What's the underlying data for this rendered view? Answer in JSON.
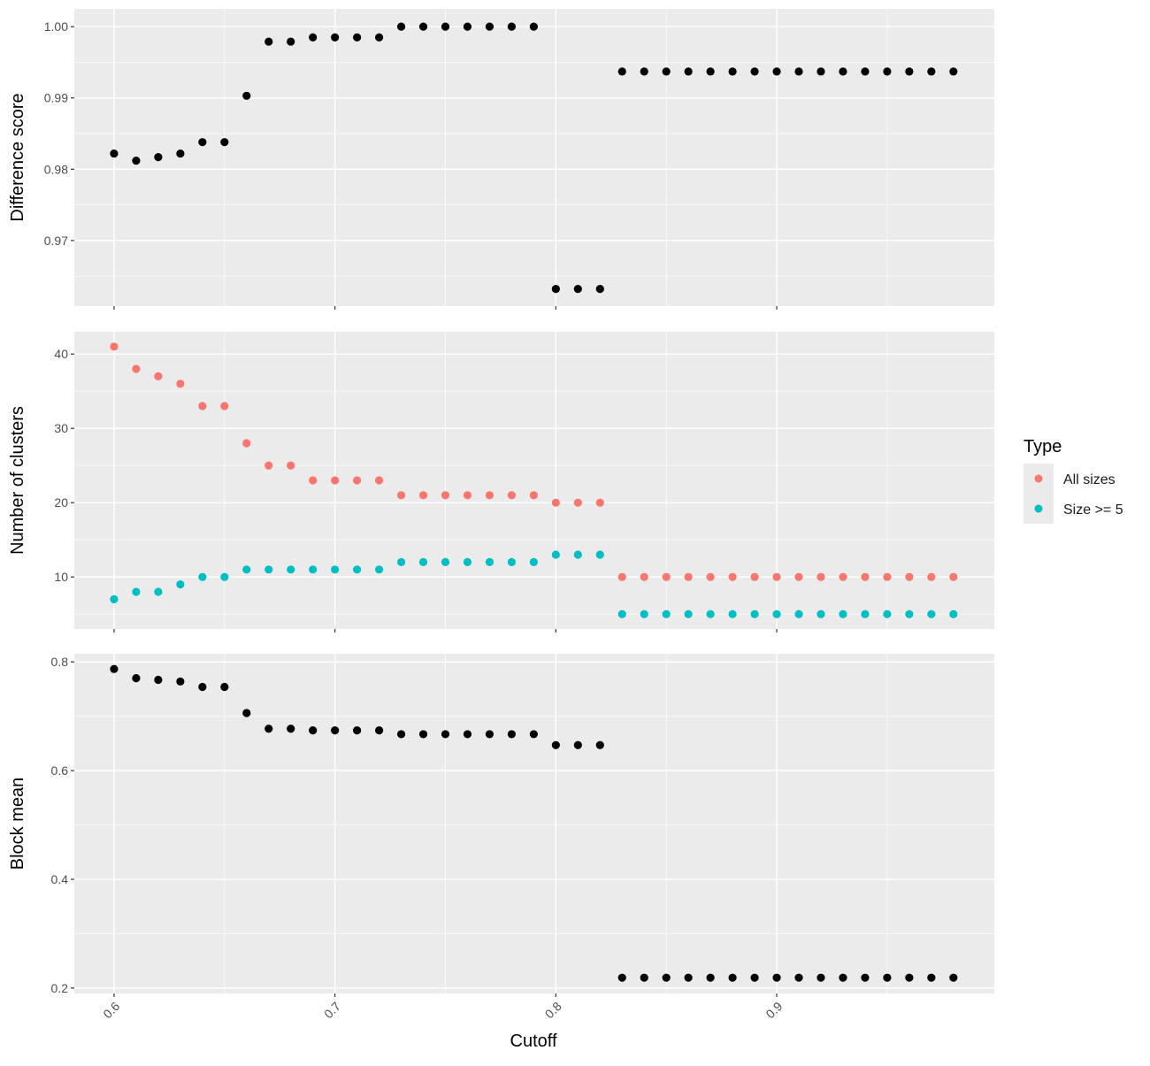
{
  "chart_data": [
    {
      "type": "scatter",
      "panel": "top",
      "ylabel": "Difference score",
      "ylim": [
        0.9608,
        1.0025
      ],
      "yticks": [
        0.97,
        0.98,
        0.99,
        1.0
      ],
      "ytick_labels": [
        "0.97",
        "0.98",
        "0.99",
        "1.00"
      ],
      "grid": true,
      "series": [
        {
          "color": "#000000",
          "x": [
            0.6,
            0.61,
            0.62,
            0.63,
            0.64,
            0.65,
            0.66,
            0.67,
            0.68,
            0.69,
            0.7,
            0.71,
            0.72,
            0.73,
            0.74,
            0.75,
            0.76,
            0.77,
            0.78,
            0.79,
            0.8,
            0.81,
            0.82,
            0.83,
            0.84,
            0.85,
            0.86,
            0.87,
            0.88,
            0.89,
            0.9,
            0.91,
            0.92,
            0.93,
            0.94,
            0.95,
            0.96,
            0.97,
            0.98
          ],
          "y": [
            0.9822,
            0.9812,
            0.9817,
            0.9822,
            0.9838,
            0.9838,
            0.9903,
            0.9979,
            0.9979,
            0.9985,
            0.9985,
            0.9985,
            0.9985,
            1.0,
            1.0,
            1.0,
            1.0,
            1.0,
            1.0,
            1.0,
            0.9632,
            0.9632,
            0.9632,
            0.9937,
            0.9937,
            0.9937,
            0.9937,
            0.9937,
            0.9937,
            0.9937,
            0.9937,
            0.9937,
            0.9937,
            0.9937,
            0.9937,
            0.9937,
            0.9937,
            0.9937,
            0.9937
          ]
        }
      ]
    },
    {
      "type": "scatter",
      "panel": "middle",
      "ylabel": "Number of clusters",
      "ylim": [
        3.0,
        43.0
      ],
      "yticks": [
        10,
        20,
        30,
        40
      ],
      "ytick_labels": [
        "10",
        "20",
        "30",
        "40"
      ],
      "grid": true,
      "legend": {
        "title": "Type",
        "position": "right"
      },
      "series": [
        {
          "name": "All sizes",
          "color": "#F8766D",
          "x": [
            0.6,
            0.61,
            0.62,
            0.63,
            0.64,
            0.65,
            0.66,
            0.67,
            0.68,
            0.69,
            0.7,
            0.71,
            0.72,
            0.73,
            0.74,
            0.75,
            0.76,
            0.77,
            0.78,
            0.79,
            0.8,
            0.81,
            0.82,
            0.83,
            0.84,
            0.85,
            0.86,
            0.87,
            0.88,
            0.89,
            0.9,
            0.91,
            0.92,
            0.93,
            0.94,
            0.95,
            0.96,
            0.97,
            0.98
          ],
          "y": [
            41,
            38,
            37,
            36,
            33,
            33,
            28,
            25,
            25,
            23,
            23,
            23,
            23,
            21,
            21,
            21,
            21,
            21,
            21,
            21,
            20,
            20,
            20,
            10,
            10,
            10,
            10,
            10,
            10,
            10,
            10,
            10,
            10,
            10,
            10,
            10,
            10,
            10,
            10
          ]
        },
        {
          "name": "Size >= 5",
          "color": "#00BFC4",
          "x": [
            0.6,
            0.61,
            0.62,
            0.63,
            0.64,
            0.65,
            0.66,
            0.67,
            0.68,
            0.69,
            0.7,
            0.71,
            0.72,
            0.73,
            0.74,
            0.75,
            0.76,
            0.77,
            0.78,
            0.79,
            0.8,
            0.81,
            0.82,
            0.83,
            0.84,
            0.85,
            0.86,
            0.87,
            0.88,
            0.89,
            0.9,
            0.91,
            0.92,
            0.93,
            0.94,
            0.95,
            0.96,
            0.97,
            0.98
          ],
          "y": [
            7,
            8,
            8,
            9,
            10,
            10,
            11,
            11,
            11,
            11,
            11,
            11,
            11,
            12,
            12,
            12,
            12,
            12,
            12,
            12,
            13,
            13,
            13,
            5,
            5,
            5,
            5,
            5,
            5,
            5,
            5,
            5,
            5,
            5,
            5,
            5,
            5,
            5,
            5
          ]
        }
      ]
    },
    {
      "type": "scatter",
      "panel": "bottom",
      "ylabel": "Block mean",
      "xlabel": "Cutoff",
      "ylim": [
        0.19,
        0.815
      ],
      "yticks": [
        0.2,
        0.4,
        0.6,
        0.8
      ],
      "ytick_labels": [
        "0.2",
        "0.4",
        "0.6",
        "0.8"
      ],
      "grid": true,
      "series": [
        {
          "color": "#000000",
          "x": [
            0.6,
            0.61,
            0.62,
            0.63,
            0.64,
            0.65,
            0.66,
            0.67,
            0.68,
            0.69,
            0.7,
            0.71,
            0.72,
            0.73,
            0.74,
            0.75,
            0.76,
            0.77,
            0.78,
            0.79,
            0.8,
            0.81,
            0.82,
            0.83,
            0.84,
            0.85,
            0.86,
            0.87,
            0.88,
            0.89,
            0.9,
            0.91,
            0.92,
            0.93,
            0.94,
            0.95,
            0.96,
            0.97,
            0.98
          ],
          "y": [
            0.787,
            0.77,
            0.767,
            0.764,
            0.754,
            0.754,
            0.706,
            0.677,
            0.677,
            0.674,
            0.674,
            0.674,
            0.674,
            0.667,
            0.667,
            0.667,
            0.667,
            0.667,
            0.667,
            0.667,
            0.647,
            0.647,
            0.647,
            0.219,
            0.219,
            0.219,
            0.219,
            0.219,
            0.219,
            0.219,
            0.219,
            0.219,
            0.219,
            0.219,
            0.219,
            0.219,
            0.219,
            0.219,
            0.219
          ]
        }
      ]
    }
  ],
  "x_axis": {
    "label": "Cutoff",
    "xlim": [
      0.582,
      0.9985
    ],
    "ticks": [
      0.6,
      0.7,
      0.8,
      0.9
    ],
    "tick_labels": [
      "0.6",
      "0.7",
      "0.8",
      "0.9"
    ],
    "tick_label_rotation_deg": -45
  },
  "legend": {
    "title": "Type",
    "items": [
      {
        "label": "All sizes",
        "color": "#F8766D"
      },
      {
        "label": "Size >= 5",
        "color": "#00BFC4"
      }
    ]
  }
}
